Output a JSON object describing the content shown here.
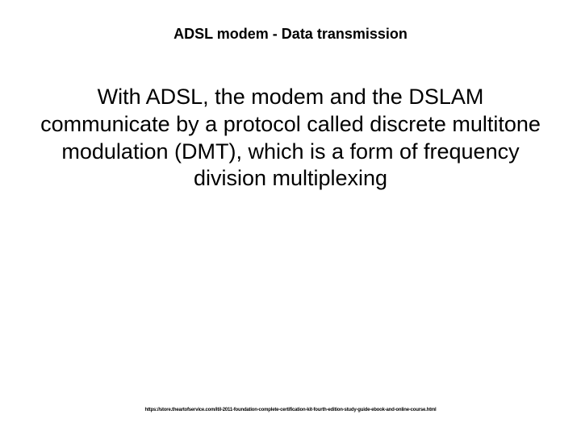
{
  "slide": {
    "title": {
      "text": "ADSL modem - Data transmission",
      "fontsize": 18,
      "fontweight": "bold",
      "color": "#000000"
    },
    "body": {
      "text": "With ADSL, the modem and the DSLAM communicate by a protocol called discrete multitone modulation (DMT), which is a form of frequency division multiplexing",
      "fontsize": 27,
      "fontweight": "normal",
      "color": "#000000"
    },
    "footer": {
      "text": "https://store.theartofservice.com/itil-2011-foundation-complete-certification-kit-fourth-edition-study-guide-ebook-and-online-course.html",
      "fontsize": 6,
      "fontweight": "bold",
      "color": "#000000"
    },
    "background_color": "#ffffff"
  }
}
